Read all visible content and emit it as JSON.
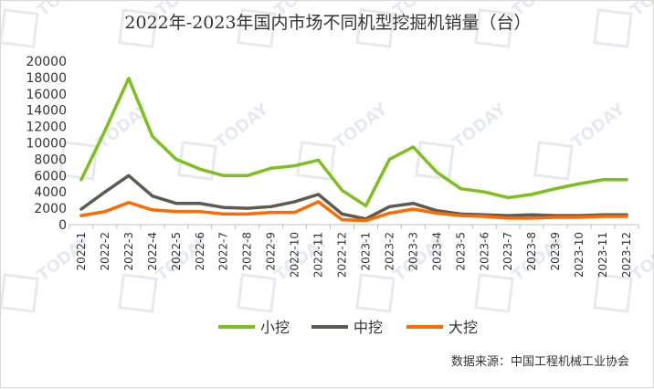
{
  "chart_data": {
    "type": "line",
    "title": "2022年-2023年国内市场不同机型挖掘机销量（台）",
    "x": [
      "2022-1",
      "2022-2",
      "2022-3",
      "2022-4",
      "2022-5",
      "2022-6",
      "2022-7",
      "2022-8",
      "2022-9",
      "2022-10",
      "2022-11",
      "2022-12",
      "2023-1",
      "2023-2",
      "2023-3",
      "2023-4",
      "2023-5",
      "2023-6",
      "2023-7",
      "2023-8",
      "2023-9",
      "2023-10",
      "2023-11",
      "2023-12"
    ],
    "yticks": [
      "0",
      "2000",
      "4000",
      "6000",
      "8000",
      "10000",
      "12000",
      "14000",
      "16000",
      "18000",
      "20000"
    ],
    "ylim": [
      0,
      20000
    ],
    "grid": false,
    "legend_position": "bottom",
    "series": [
      {
        "name": "小挖",
        "color": "#7dc01e",
        "values": [
          5500,
          11500,
          17900,
          10800,
          8000,
          6800,
          6000,
          6000,
          6900,
          7200,
          7900,
          4200,
          2300,
          8000,
          9500,
          6400,
          4400,
          4000,
          3300,
          3700,
          4400,
          5000,
          5500,
          5500
        ]
      },
      {
        "name": "中挖",
        "color": "#5e5a4f",
        "values": [
          1900,
          4000,
          6000,
          3500,
          2600,
          2600,
          2100,
          2000,
          2200,
          2800,
          3700,
          1300,
          700,
          2200,
          2600,
          1700,
          1300,
          1200,
          1100,
          1200,
          1100,
          1100,
          1200,
          1200
        ]
      },
      {
        "name": "大挖",
        "color": "#ff6a00",
        "values": [
          1100,
          1600,
          2700,
          1800,
          1600,
          1600,
          1300,
          1300,
          1500,
          1500,
          2800,
          600,
          500,
          1400,
          1900,
          1400,
          1100,
          1000,
          800,
          800,
          900,
          900,
          1000,
          1000
        ]
      }
    ],
    "source": "数据来源：中国工程机械工业协会"
  },
  "watermark": {
    "text": "TODAY"
  }
}
